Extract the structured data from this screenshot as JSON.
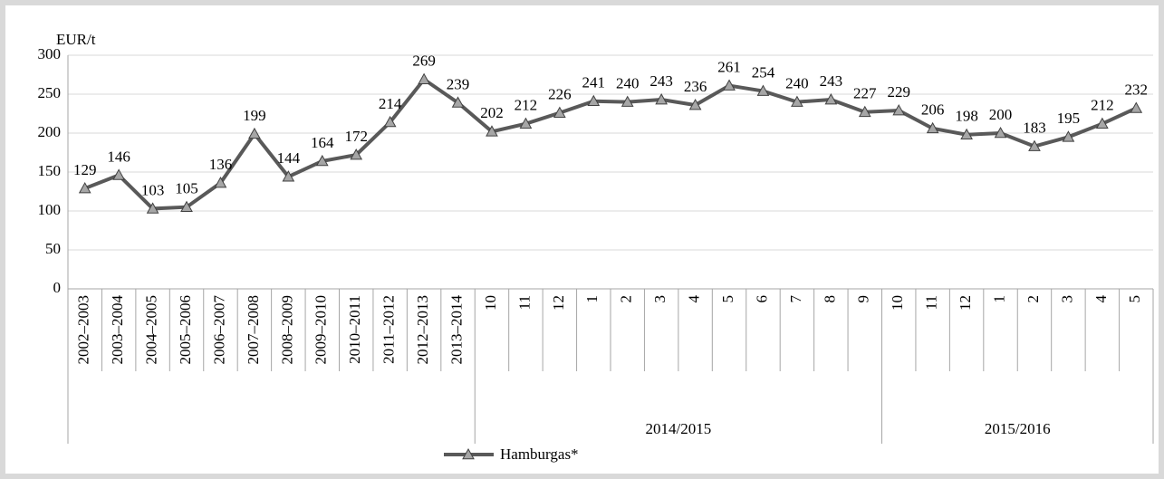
{
  "chart_data": {
    "type": "line",
    "y_axis_label": "EUR/t",
    "categories": [
      "2002–2003",
      "2003–2004",
      "2004–2005",
      "2005–2006",
      "2006–2007",
      "2007–2008",
      "2008–2009",
      "2009–2010",
      "2010–2011",
      "2011–2012",
      "2012–2013",
      "2013–2014",
      "10",
      "11",
      "12",
      "1",
      "2",
      "3",
      "4",
      "5",
      "6",
      "7",
      "8",
      "9",
      "10",
      "11",
      "12",
      "1",
      "2",
      "3",
      "4",
      "5"
    ],
    "category_groups": [
      null,
      null,
      null,
      null,
      null,
      null,
      null,
      null,
      null,
      null,
      null,
      null,
      "2014/2015",
      "2014/2015",
      "2014/2015",
      "2014/2015",
      "2014/2015",
      "2014/2015",
      "2014/2015",
      "2014/2015",
      "2014/2015",
      "2014/2015",
      "2014/2015",
      "2014/2015",
      "2015/2016",
      "2015/2016",
      "2015/2016",
      "2015/2016",
      "2015/2016",
      "2015/2016",
      "2015/2016",
      "2015/2016"
    ],
    "series": [
      {
        "name": "Hamburgas*",
        "color": "#595959",
        "marker_color": "#a6a6a6",
        "values": [
          129,
          146,
          103,
          105,
          136,
          199,
          144,
          164,
          172,
          214,
          269,
          239,
          202,
          212,
          226,
          241,
          240,
          243,
          236,
          261,
          254,
          240,
          243,
          227,
          229,
          206,
          198,
          200,
          183,
          195,
          212,
          232
        ]
      }
    ],
    "ylim": [
      0,
      300
    ],
    "yticks": [
      0,
      50,
      100,
      150,
      200,
      250,
      300
    ],
    "grid": true
  }
}
